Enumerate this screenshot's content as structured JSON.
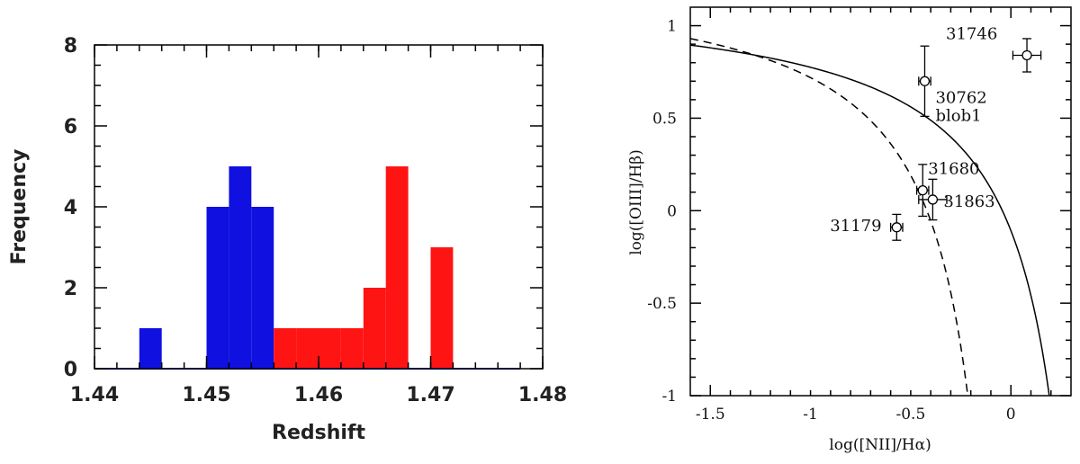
{
  "chart_data": [
    {
      "type": "bar",
      "xlabel": "Redshift",
      "ylabel": "Frequency",
      "xlim": [
        1.44,
        1.48
      ],
      "ylim": [
        0,
        8
      ],
      "x_ticks": [
        "1.44",
        "1.45",
        "1.46",
        "1.47",
        "1.48"
      ],
      "y_ticks": [
        "0",
        "2",
        "4",
        "6",
        "8"
      ],
      "bin_width": 0.002,
      "series": [
        {
          "color": "#1010e0",
          "bins": [
            {
              "start": 1.444,
              "count": 1
            },
            {
              "start": 1.45,
              "count": 4
            },
            {
              "start": 1.452,
              "count": 5
            },
            {
              "start": 1.454,
              "count": 4
            }
          ]
        },
        {
          "color": "#ff1414",
          "bins": [
            {
              "start": 1.456,
              "count": 1
            },
            {
              "start": 1.458,
              "count": 1
            },
            {
              "start": 1.46,
              "count": 1
            },
            {
              "start": 1.462,
              "count": 1
            },
            {
              "start": 1.464,
              "count": 2
            },
            {
              "start": 1.466,
              "count": 5
            },
            {
              "start": 1.47,
              "count": 3
            }
          ]
        }
      ],
      "baseline_color": "#1010e0"
    },
    {
      "type": "scatter",
      "xlabel": "log([NII]/Hα)",
      "ylabel": "log([OIII]/Hβ)",
      "xlim": [
        -1.6,
        0.3
      ],
      "ylim": [
        -1,
        1.1
      ],
      "x_ticks": [
        "-1.5",
        "-1",
        "-0.5",
        "0"
      ],
      "y_ticks": [
        "-1",
        "-0.5",
        "0",
        "0.5",
        "1"
      ],
      "points": [
        {
          "label": "31746",
          "x": 0.08,
          "y": 0.84,
          "xerr": 0.07,
          "yerr": 0.09
        },
        {
          "label": "30762",
          "label2": "blob1",
          "x": -0.43,
          "y": 0.7,
          "xerr": 0.03,
          "yerr": 0.19
        },
        {
          "label": "31680",
          "x": -0.44,
          "y": 0.11,
          "xerr": 0.03,
          "yerr": 0.14
        },
        {
          "label": "31863",
          "x": -0.39,
          "y": 0.06,
          "xerr": 0.07,
          "yerr": 0.11
        },
        {
          "label": "31179",
          "x": -0.57,
          "y": -0.09,
          "xerr": 0.03,
          "yerr": 0.07
        }
      ],
      "curves": [
        {
          "style": "solid",
          "formula": "0.61/(x-0.47)+1.19"
        },
        {
          "style": "dashed",
          "formula": "0.61/(x-0.05)+1.3"
        }
      ]
    }
  ]
}
